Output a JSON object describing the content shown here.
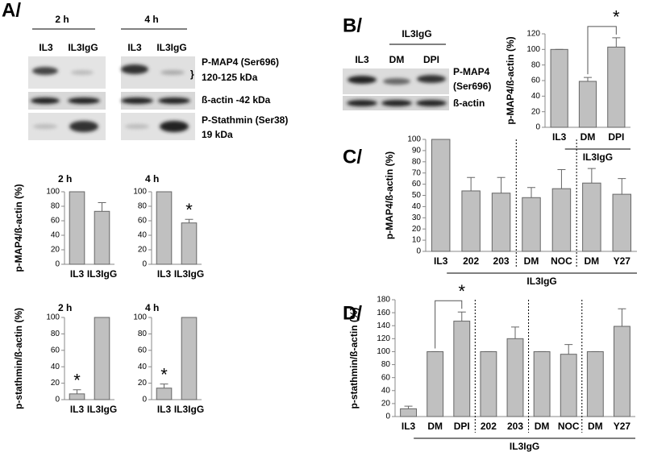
{
  "panel_labels": [
    "A/",
    "B/",
    "C/",
    "D/"
  ],
  "blot_a": {
    "times": [
      "2 h",
      "4 h"
    ],
    "lanes": [
      "IL3",
      "IL3IgG",
      "IL3",
      "IL3IgG"
    ],
    "labels": [
      "P-MAP4 (Ser696)",
      "120-125 kDa",
      "ß-actin -42 kDa",
      "P-Stathmin (Ser38)",
      "19 kDa"
    ]
  },
  "blot_b": {
    "group": "IL3IgG",
    "lanes": [
      "IL3",
      "DM",
      "DPI"
    ],
    "labels": [
      "P-MAP4",
      "(Ser696)",
      "ß-actin"
    ]
  },
  "chart_data": [
    {
      "type": "bar",
      "title": "2 h",
      "y_label": "p-MAP4/ß-actin (%)",
      "categories": [
        "IL3",
        "IL3IgG"
      ],
      "values": [
        100,
        73
      ],
      "errors": [
        0,
        12
      ],
      "ylim": [
        0,
        100
      ],
      "yticks": [
        0,
        20,
        40,
        60,
        80,
        100
      ],
      "color": "#c0c0c0"
    },
    {
      "type": "bar",
      "title": "4 h",
      "categories": [
        "IL3",
        "IL3IgG"
      ],
      "values": [
        100,
        57
      ],
      "errors": [
        0,
        5
      ],
      "ylim": [
        0,
        100
      ],
      "yticks": [
        0,
        20,
        40,
        60,
        80,
        100
      ],
      "annotation": "*",
      "annotation_at": "IL3IgG",
      "color": "#c0c0c0"
    },
    {
      "type": "bar",
      "title": "2 h",
      "y_label": "p-stathmin/ß-actin (%)",
      "categories": [
        "IL3",
        "IL3IgG"
      ],
      "values": [
        7,
        100
      ],
      "errors": [
        5,
        0
      ],
      "ylim": [
        0,
        100
      ],
      "yticks": [
        0,
        20,
        40,
        60,
        80,
        100
      ],
      "annotation": "*",
      "annotation_at": "IL3",
      "color": "#c0c0c0"
    },
    {
      "type": "bar",
      "title": "4 h",
      "categories": [
        "IL3",
        "IL3IgG"
      ],
      "values": [
        14,
        100
      ],
      "errors": [
        5,
        0
      ],
      "ylim": [
        0,
        100
      ],
      "yticks": [
        0,
        20,
        40,
        60,
        80,
        100
      ],
      "annotation": "*",
      "annotation_at": "IL3",
      "color": "#c0c0c0"
    },
    {
      "type": "bar",
      "y_label": "p-MAP4/ß-actin (%)",
      "categories": [
        "IL3",
        "DM",
        "DPI"
      ],
      "values": [
        100,
        59,
        103
      ],
      "errors": [
        0,
        5,
        12
      ],
      "ylim": [
        0,
        120
      ],
      "yticks": [
        0,
        20,
        40,
        60,
        80,
        100,
        120
      ],
      "group": "IL3IgG",
      "annotation": "*",
      "annotation_at": "DPI",
      "bracket_from": "DM",
      "color": "#c0c0c0"
    },
    {
      "type": "bar",
      "y_label": "p-MAP4/ß-actin (%)",
      "categories": [
        "IL3",
        "202",
        "203",
        "DM",
        "NOC",
        "DM",
        "Y27"
      ],
      "values": [
        100,
        54,
        52,
        48,
        56,
        61,
        51
      ],
      "errors": [
        0,
        12,
        14,
        9,
        17,
        13,
        14
      ],
      "ylim": [
        0,
        100
      ],
      "yticks": [
        0,
        10,
        20,
        30,
        40,
        50,
        60,
        70,
        80,
        90,
        100
      ],
      "group": "IL3IgG",
      "separators_after": [
        "203",
        "NOC"
      ],
      "color": "#c0c0c0"
    },
    {
      "type": "bar",
      "y_label": "p-stathmin/ß-actin (%)",
      "categories": [
        "IL3",
        "DM",
        "DPI",
        "202",
        "203",
        "DM",
        "NOC",
        "DM",
        "Y27"
      ],
      "values": [
        12,
        100,
        147,
        100,
        120,
        100,
        96,
        100,
        139
      ],
      "errors": [
        4,
        0,
        14,
        0,
        18,
        0,
        15,
        0,
        27
      ],
      "ylim": [
        0,
        180
      ],
      "yticks": [
        0,
        20,
        40,
        60,
        80,
        100,
        120,
        140,
        160,
        180
      ],
      "group": "IL3IgG",
      "separators_after": [
        "DPI",
        "203",
        "NOC"
      ],
      "annotation": "*",
      "annotation_at": "DPI",
      "bracket_from": "DM",
      "color": "#c0c0c0"
    }
  ]
}
